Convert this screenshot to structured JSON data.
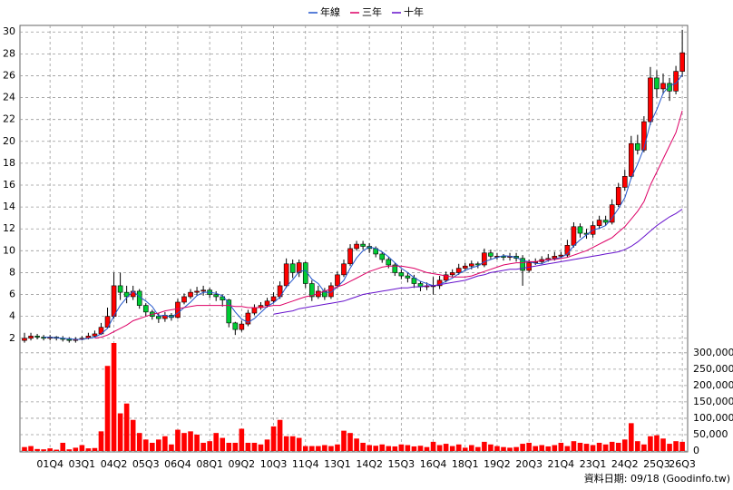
{
  "chart_data": [
    {
      "type": "candlestick",
      "categories": [
        null,
        null,
        null,
        null,
        "01Q4",
        null,
        null,
        null,
        null,
        "03Q1",
        null,
        null,
        null,
        null,
        "04Q2",
        null,
        null,
        null,
        null,
        "05Q3",
        null,
        null,
        null,
        null,
        "06Q4",
        null,
        null,
        null,
        null,
        "08Q1",
        null,
        null,
        null,
        null,
        "09Q2",
        null,
        null,
        null,
        null,
        "10Q3",
        null,
        null,
        null,
        null,
        "11Q4",
        null,
        null,
        null,
        null,
        "13Q1",
        null,
        null,
        null,
        null,
        "14Q2",
        null,
        null,
        null,
        null,
        "15Q3",
        null,
        null,
        null,
        null,
        "16Q4",
        null,
        null,
        null,
        null,
        "18Q1",
        null,
        null,
        null,
        null,
        "19Q2",
        null,
        null,
        null,
        null,
        "20Q3",
        null,
        null,
        null,
        null,
        "21Q4",
        null,
        null,
        null,
        null,
        "23Q1",
        null,
        null,
        null,
        null,
        "24Q2",
        null,
        null,
        null,
        null,
        "25Q3",
        null,
        null,
        null,
        "26Q3"
      ],
      "open": [
        1.8,
        2.0,
        2.2,
        2.1,
        2.0,
        2.1,
        2.0,
        1.9,
        1.8,
        1.9,
        2.0,
        2.2,
        2.4,
        3.0,
        4.0,
        6.8,
        6.2,
        5.8,
        6.3,
        5.0,
        4.4,
        4.0,
        3.8,
        4.1,
        3.9,
        5.3,
        5.8,
        6.2,
        6.3,
        6.4,
        6.0,
        5.8,
        5.5,
        3.4,
        2.8,
        3.3,
        4.3,
        4.8,
        5.0,
        5.4,
        5.8,
        6.8,
        8.8,
        8.0,
        8.9,
        7.0,
        5.8,
        6.3,
        5.8,
        6.8,
        7.8,
        8.8,
        10.2,
        10.6,
        10.4,
        10.2,
        9.7,
        9.2,
        8.7,
        8.0,
        7.7,
        7.5,
        7.0,
        6.7,
        6.8,
        6.8,
        7.3,
        7.8,
        8.0,
        8.4,
        8.6,
        8.8,
        8.7,
        9.8,
        9.5,
        9.5,
        9.4,
        9.5,
        9.3,
        8.2,
        8.9,
        9.0,
        9.2,
        9.3,
        9.5,
        9.6,
        10.5,
        12.2,
        11.6,
        11.5,
        12.3,
        12.8,
        12.6,
        14.2,
        15.8,
        16.8,
        19.8,
        19.2,
        21.8,
        25.8,
        24.8,
        25.3,
        24.6,
        26.4
      ],
      "high": [
        2.5,
        2.5,
        2.4,
        2.3,
        2.3,
        2.2,
        2.2,
        2.1,
        2.1,
        2.2,
        2.5,
        2.7,
        3.4,
        4.8,
        8.0,
        8.0,
        6.8,
        6.8,
        6.5,
        5.2,
        4.6,
        4.3,
        4.4,
        4.3,
        5.6,
        6.1,
        6.5,
        6.7,
        6.8,
        6.6,
        6.3,
        6.0,
        5.6,
        3.5,
        3.6,
        4.6,
        5.1,
        5.3,
        5.7,
        6.2,
        7.2,
        9.3,
        9.2,
        9.2,
        9.0,
        7.3,
        6.8,
        6.6,
        7.1,
        8.1,
        9.2,
        10.6,
        10.9,
        10.9,
        10.7,
        10.4,
        9.9,
        9.4,
        8.9,
        8.3,
        8.0,
        7.8,
        7.2,
        7.1,
        7.6,
        7.7,
        8.1,
        8.3,
        8.8,
        8.9,
        9.1,
        9.0,
        10.2,
        10.1,
        9.8,
        9.7,
        9.8,
        9.8,
        9.6,
        9.2,
        9.3,
        9.5,
        9.7,
        9.9,
        9.9,
        11.0,
        12.6,
        12.5,
        12.0,
        12.7,
        13.2,
        13.2,
        14.7,
        16.2,
        17.4,
        20.5,
        20.6,
        22.3,
        26.8,
        26.5,
        26.2,
        25.8,
        26.9,
        30.2
      ],
      "low": [
        1.6,
        1.8,
        1.9,
        1.8,
        1.8,
        1.8,
        1.7,
        1.6,
        1.6,
        1.8,
        1.9,
        2.1,
        2.3,
        2.9,
        3.8,
        5.5,
        5.2,
        5.5,
        4.7,
        4.0,
        3.7,
        3.4,
        3.5,
        3.6,
        3.8,
        5.1,
        5.6,
        5.9,
        5.9,
        5.7,
        5.4,
        4.9,
        3.0,
        2.3,
        2.6,
        3.1,
        4.1,
        4.6,
        4.8,
        5.2,
        5.6,
        6.6,
        7.5,
        7.6,
        6.6,
        5.4,
        5.6,
        5.5,
        5.6,
        6.6,
        7.6,
        8.6,
        10.0,
        10.1,
        9.8,
        9.4,
        8.9,
        8.4,
        7.7,
        7.4,
        7.1,
        6.6,
        6.3,
        6.4,
        6.0,
        6.5,
        7.1,
        7.6,
        7.8,
        8.2,
        8.3,
        8.4,
        8.5,
        9.2,
        9.2,
        9.1,
        9.1,
        9.0,
        6.8,
        8.0,
        8.7,
        8.8,
        9.0,
        9.1,
        9.3,
        9.4,
        10.3,
        11.2,
        11.1,
        11.2,
        12.0,
        12.3,
        12.4,
        14.0,
        15.5,
        16.6,
        18.8,
        19.0,
        21.5,
        24.0,
        24.3,
        23.7,
        24.3,
        25.9
      ],
      "close": [
        2.0,
        2.2,
        2.1,
        2.0,
        2.1,
        2.0,
        1.9,
        1.8,
        1.9,
        2.0,
        2.2,
        2.4,
        3.0,
        4.0,
        6.8,
        6.2,
        5.8,
        6.3,
        5.0,
        4.4,
        4.0,
        3.8,
        4.1,
        3.9,
        5.3,
        5.8,
        6.2,
        6.3,
        6.4,
        6.0,
        5.8,
        5.5,
        3.4,
        2.8,
        3.3,
        4.3,
        4.8,
        5.0,
        5.4,
        5.8,
        6.8,
        8.8,
        8.0,
        8.9,
        7.0,
        5.8,
        6.3,
        5.8,
        6.8,
        7.8,
        8.8,
        10.2,
        10.6,
        10.4,
        10.2,
        9.7,
        9.2,
        8.7,
        8.0,
        7.7,
        7.5,
        7.0,
        6.7,
        6.8,
        6.8,
        7.3,
        7.8,
        8.0,
        8.4,
        8.6,
        8.8,
        8.7,
        9.8,
        9.5,
        9.5,
        9.4,
        9.5,
        9.3,
        8.2,
        8.9,
        9.0,
        9.2,
        9.3,
        9.5,
        9.6,
        10.5,
        12.2,
        11.6,
        11.5,
        12.3,
        12.8,
        12.6,
        14.2,
        15.8,
        16.8,
        19.8,
        19.2,
        21.8,
        25.8,
        24.8,
        25.3,
        24.6,
        26.4,
        28.1
      ],
      "up_color": "#ff0000",
      "down_color": "#00cc33",
      "series": [
        {
          "name": "年線",
          "color": "#2255cc",
          "values": [
            null,
            null,
            null,
            2.1,
            2.1,
            2.05,
            2.0,
            1.95,
            1.9,
            1.9,
            2.0,
            2.1,
            2.4,
            2.9,
            4.05,
            5.0,
            5.7,
            6.3,
            5.8,
            5.4,
            4.9,
            4.05,
            4.1,
            3.95,
            4.3,
            4.8,
            5.3,
            5.9,
            6.2,
            6.2,
            6.1,
            5.9,
            5.2,
            4.4,
            3.75,
            3.45,
            3.8,
            4.35,
            4.9,
            5.25,
            5.75,
            6.7,
            7.35,
            8.1,
            8.2,
            7.4,
            7.0,
            6.2,
            6.2,
            6.7,
            7.3,
            8.4,
            9.35,
            10.0,
            10.35,
            10.2,
            9.9,
            9.45,
            8.9,
            8.4,
            8.0,
            7.55,
            7.2,
            7.0,
            6.8,
            6.9,
            7.2,
            7.5,
            7.9,
            8.2,
            8.45,
            8.6,
            9.0,
            9.2,
            9.4,
            9.55,
            9.5,
            9.4,
            9.1,
            9.0,
            8.85,
            8.8,
            9.1,
            9.25,
            9.4,
            9.7,
            10.45,
            11.0,
            11.45,
            11.9,
            12.05,
            12.3,
            13.0,
            13.85,
            14.85,
            16.65,
            17.9,
            19.4,
            21.65,
            22.9,
            24.4,
            25.1,
            25.3,
            26.1
          ]
        },
        {
          "name": "三年",
          "color": "#dd0066",
          "values": [
            null,
            null,
            null,
            null,
            null,
            null,
            null,
            null,
            null,
            null,
            null,
            2.0,
            2.1,
            2.3,
            2.6,
            2.9,
            3.2,
            3.6,
            3.8,
            4.0,
            4.2,
            4.3,
            4.5,
            4.6,
            4.7,
            4.8,
            4.9,
            5.0,
            5.0,
            5.0,
            5.0,
            5.0,
            5.0,
            4.9,
            4.9,
            4.8,
            4.8,
            4.8,
            4.9,
            5.0,
            5.0,
            5.2,
            5.4,
            5.6,
            5.8,
            5.9,
            6.1,
            6.3,
            6.5,
            6.7,
            6.9,
            7.2,
            7.5,
            7.8,
            8.1,
            8.3,
            8.5,
            8.6,
            8.6,
            8.6,
            8.5,
            8.4,
            8.2,
            8.0,
            7.9,
            7.8,
            7.7,
            7.6,
            7.6,
            7.6,
            7.7,
            7.9,
            8.1,
            8.3,
            8.5,
            8.7,
            8.8,
            8.9,
            8.9,
            9.0,
            9.0,
            9.1,
            9.2,
            9.2,
            9.3,
            9.4,
            9.6,
            9.8,
            10.0,
            10.3,
            10.6,
            10.9,
            11.2,
            11.7,
            12.2,
            12.9,
            13.6,
            14.5,
            16.0,
            17.2,
            18.4,
            19.6,
            20.8,
            22.8
          ]
        },
        {
          "name": "十年",
          "color": "#6611cc",
          "values": [
            null,
            null,
            null,
            null,
            null,
            null,
            null,
            null,
            null,
            null,
            null,
            null,
            null,
            null,
            null,
            null,
            null,
            null,
            null,
            null,
            null,
            null,
            null,
            null,
            null,
            null,
            null,
            null,
            null,
            null,
            null,
            null,
            null,
            null,
            null,
            null,
            null,
            null,
            null,
            4.2,
            4.3,
            4.4,
            4.5,
            4.7,
            4.8,
            4.9,
            5.0,
            5.1,
            5.2,
            5.3,
            5.4,
            5.6,
            5.8,
            6.0,
            6.1,
            6.2,
            6.3,
            6.4,
            6.5,
            6.6,
            6.6,
            6.7,
            6.7,
            6.8,
            6.8,
            6.9,
            7.0,
            7.1,
            7.2,
            7.3,
            7.5,
            7.7,
            7.8,
            8.0,
            8.1,
            8.2,
            8.3,
            8.3,
            8.4,
            8.5,
            8.6,
            8.7,
            8.8,
            8.9,
            9.0,
            9.1,
            9.2,
            9.3,
            9.4,
            9.5,
            9.6,
            9.7,
            9.8,
            9.9,
            10.1,
            10.4,
            10.8,
            11.3,
            11.8,
            12.3,
            12.7,
            13.1,
            13.4,
            13.8
          ]
        }
      ],
      "ylim": [
        1.4,
        30.6
      ],
      "yticks": [
        2,
        4,
        6,
        8,
        10,
        12,
        14,
        16,
        18,
        20,
        22,
        24,
        26,
        28,
        30
      ],
      "grid": true
    },
    {
      "type": "bar",
      "values": [
        12000,
        15000,
        6000,
        5000,
        8000,
        4000,
        25000,
        5000,
        10000,
        18000,
        8000,
        9000,
        60000,
        260000,
        330000,
        115000,
        145000,
        95000,
        55000,
        35000,
        25000,
        35000,
        45000,
        20000,
        65000,
        55000,
        60000,
        50000,
        25000,
        30000,
        55000,
        40000,
        25000,
        25000,
        68000,
        25000,
        25000,
        20000,
        35000,
        75000,
        95000,
        45000,
        45000,
        40000,
        15000,
        15000,
        15000,
        18000,
        15000,
        20000,
        62000,
        55000,
        38000,
        25000,
        18000,
        16000,
        20000,
        15000,
        14000,
        20000,
        18000,
        14000,
        16000,
        12000,
        28000,
        18000,
        22000,
        15000,
        20000,
        10000,
        18000,
        12000,
        28000,
        20000,
        15000,
        12000,
        10000,
        12000,
        22000,
        25000,
        15000,
        18000,
        14000,
        18000,
        25000,
        15000,
        30000,
        25000,
        22000,
        18000,
        25000,
        20000,
        28000,
        25000,
        35000,
        85000,
        30000,
        20000,
        45000,
        48000,
        38000,
        22000,
        30000,
        28000
      ],
      "color": "#ff0000",
      "ylim": [
        0,
        330000
      ],
      "yticks": [
        0,
        {
          "value": 50000,
          "label": "50,000"
        },
        {
          "value": 100000,
          "label": "100,000"
        },
        {
          "value": 150000,
          "label": "150,000"
        },
        {
          "value": 200000,
          "label": "200,000"
        },
        {
          "value": 250000,
          "label": "250,000"
        },
        {
          "value": 300000,
          "label": "300,000"
        }
      ],
      "grid": true
    }
  ],
  "footer": {
    "date": "資料日期: 09/18",
    "source": "(Goodinfo.tw)"
  }
}
